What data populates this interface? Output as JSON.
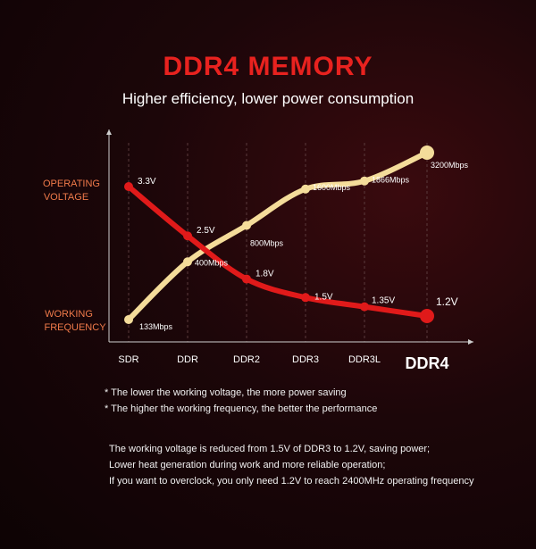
{
  "header": {
    "title": "DDR4 MEMORY",
    "subtitle": "Higher efficiency, lower power consumption"
  },
  "colors": {
    "voltage": "#e01a1a",
    "frequency": "#f4dc9a",
    "title": "#e8221f",
    "axis_label": "#f07a4a"
  },
  "chart_data": {
    "type": "line",
    "categories": [
      "SDR",
      "DDR",
      "DDR2",
      "DDR3",
      "DDR3L",
      "DDR4"
    ],
    "y_labels": {
      "top": [
        "OPERATING",
        "VOLTAGE"
      ],
      "bottom": [
        "WORKING",
        "FREQUENCY"
      ]
    },
    "series": [
      {
        "key": "voltage",
        "unit": "V",
        "values": [
          3.3,
          2.5,
          1.8,
          1.5,
          1.35,
          1.2
        ],
        "labels": [
          "3.3V",
          "2.5V",
          "1.8V",
          "1.5V",
          "1.35V",
          "1.2V"
        ]
      },
      {
        "key": "frequency",
        "unit": "Mbps",
        "values": [
          133,
          400,
          800,
          1600,
          1866,
          3200
        ],
        "labels": [
          "133Mbps",
          "400Mbps",
          "800Mbps",
          "1600Mbps",
          "1866Mbps",
          "3200Mbps"
        ]
      }
    ]
  },
  "notes": [
    "* The lower the working voltage, the more power saving",
    "* The higher the working frequency, the better the performance"
  ],
  "paragraph": [
    "The working voltage is reduced from 1.5V of DDR3 to 1.2V, saving power;",
    "Lower heat generation during work and more reliable operation;",
    "If you want to overclock, you only need 1.2V to reach 2400MHz operating frequency"
  ]
}
